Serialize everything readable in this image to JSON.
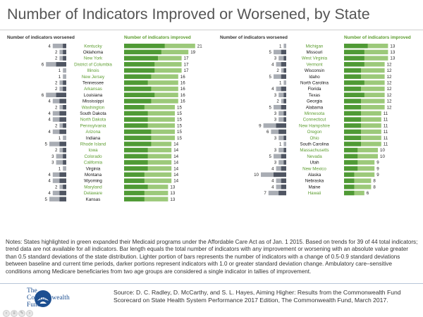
{
  "title": "Number of Indicators Improved or Worsened, by State",
  "notes": "Notes: States highlighted in green expanded their Medicaid programs under the Affordable Care Act as of Jan. 1 2015. Based on trends for 39 of 44 total indicators; trend data are not available for all indicators. Bar length equals the total number of indicators with any improvement or worsening with an absolute value greater than 0.5 standard deviations of the state distribution. Lighter portion of bars represents the number of indicators with a change of 0.5-0.9 standard deviations between baseline and current time periods, darker portions represent indicators with 1.0 or greater standard deviation change. Ambulatory care–sensitive conditions among Medicare beneficiaries from two age groups are considered a single indicator in tallies of improvement.",
  "source": "Source: D. C. Radley, D. McCarthy, and S. L. Hayes, Aiming Higher: Results from the Commonwealth Fund Scorecard on State Health System Performance 2017 Edition, The Commonwealth Fund, March 2017.",
  "logo": {
    "line1": "The",
    "line2": "Commonwealth",
    "line3": "Fund"
  },
  "colors": {
    "improved_light": "#9cc97a",
    "improved_dark": "#4f9a35",
    "worsened_light": "#a9adb4",
    "worsened_dark": "#4f5562",
    "expansion_label": "#5b9c2e",
    "nonexpansion_label": "#111111",
    "worsened_header": "#333333",
    "improved_header": "#5b9c2e"
  },
  "chart_data": {
    "type": "bar",
    "worsened_header": "Number of indicators worsened",
    "improved_header": "Number of indicators improved",
    "panels": [
      {
        "states": [
          {
            "name": "Kentucky",
            "expanded": true,
            "improved": 21,
            "improved_dark": 12,
            "worsened": 4,
            "worsened_dark": 1
          },
          {
            "name": "Oklahoma",
            "expanded": false,
            "improved": 19,
            "improved_dark": 11,
            "worsened": 2,
            "worsened_dark": 1
          },
          {
            "name": "New York",
            "expanded": true,
            "improved": 17,
            "improved_dark": 10,
            "worsened": 2,
            "worsened_dark": 1
          },
          {
            "name": "District of Columbia",
            "expanded": true,
            "improved": 17,
            "improved_dark": 9,
            "worsened": 6,
            "worsened_dark": 3
          },
          {
            "name": "Illinois",
            "expanded": true,
            "improved": 17,
            "improved_dark": 9,
            "worsened": 1,
            "worsened_dark": 0
          },
          {
            "name": "New Jersey",
            "expanded": true,
            "improved": 16,
            "improved_dark": 8,
            "worsened": 1,
            "worsened_dark": 0
          },
          {
            "name": "Tennessee",
            "expanded": false,
            "improved": 16,
            "improved_dark": 7,
            "worsened": 2,
            "worsened_dark": 1
          },
          {
            "name": "Arkansas",
            "expanded": true,
            "improved": 16,
            "improved_dark": 8,
            "worsened": 2,
            "worsened_dark": 1
          },
          {
            "name": "Louisiana",
            "expanded": false,
            "improved": 16,
            "improved_dark": 9,
            "worsened": 6,
            "worsened_dark": 3
          },
          {
            "name": "Mississippi",
            "expanded": false,
            "improved": 16,
            "improved_dark": 8,
            "worsened": 4,
            "worsened_dark": 2
          },
          {
            "name": "Washington",
            "expanded": true,
            "improved": 15,
            "improved_dark": 6,
            "worsened": 2,
            "worsened_dark": 1
          },
          {
            "name": "South Dakota",
            "expanded": false,
            "improved": 15,
            "improved_dark": 7,
            "worsened": 4,
            "worsened_dark": 2
          },
          {
            "name": "North Dakota",
            "expanded": true,
            "improved": 15,
            "improved_dark": 7,
            "worsened": 4,
            "worsened_dark": 2
          },
          {
            "name": "Pennsylvania",
            "expanded": true,
            "improved": 15,
            "improved_dark": 7,
            "worsened": 2,
            "worsened_dark": 1
          },
          {
            "name": "Arizona",
            "expanded": true,
            "improved": 15,
            "improved_dark": 8,
            "worsened": 4,
            "worsened_dark": 2
          },
          {
            "name": "Indiana",
            "expanded": false,
            "improved": 15,
            "improved_dark": 8,
            "worsened": 1,
            "worsened_dark": 0
          },
          {
            "name": "Rhode Island",
            "expanded": true,
            "improved": 14,
            "improved_dark": 8,
            "worsened": 5,
            "worsened_dark": 2
          },
          {
            "name": "Iowa",
            "expanded": true,
            "improved": 14,
            "improved_dark": 7,
            "worsened": 2,
            "worsened_dark": 1
          },
          {
            "name": "Colorado",
            "expanded": true,
            "improved": 14,
            "improved_dark": 7,
            "worsened": 3,
            "worsened_dark": 1
          },
          {
            "name": "California",
            "expanded": true,
            "improved": 14,
            "improved_dark": 7,
            "worsened": 3,
            "worsened_dark": 1
          },
          {
            "name": "Virginia",
            "expanded": false,
            "improved": 14,
            "improved_dark": 7,
            "worsened": 1,
            "worsened_dark": 0
          },
          {
            "name": "Montana",
            "expanded": false,
            "improved": 14,
            "improved_dark": 6,
            "worsened": 4,
            "worsened_dark": 2
          },
          {
            "name": "Wyoming",
            "expanded": false,
            "improved": 14,
            "improved_dark": 6,
            "worsened": 4,
            "worsened_dark": 2
          },
          {
            "name": "Maryland",
            "expanded": true,
            "improved": 13,
            "improved_dark": 7,
            "worsened": 2,
            "worsened_dark": 1
          },
          {
            "name": "Delaware",
            "expanded": true,
            "improved": 13,
            "improved_dark": 6,
            "worsened": 4,
            "worsened_dark": 2
          },
          {
            "name": "Kansas",
            "expanded": false,
            "improved": 13,
            "improved_dark": 6,
            "worsened": 5,
            "worsened_dark": 2
          }
        ]
      },
      {
        "states": [
          {
            "name": "Michigan",
            "expanded": true,
            "improved": 13,
            "improved_dark": 7,
            "worsened": 1,
            "worsened_dark": 0
          },
          {
            "name": "Missouri",
            "expanded": false,
            "improved": 13,
            "improved_dark": 6,
            "worsened": 5,
            "worsened_dark": 2
          },
          {
            "name": "West Virginia",
            "expanded": true,
            "improved": 13,
            "improved_dark": 6,
            "worsened": 3,
            "worsened_dark": 1
          },
          {
            "name": "Vermont",
            "expanded": true,
            "improved": 12,
            "improved_dark": 6,
            "worsened": 4,
            "worsened_dark": 2
          },
          {
            "name": "Wisconsin",
            "expanded": false,
            "improved": 12,
            "improved_dark": 5,
            "worsened": 2,
            "worsened_dark": 1
          },
          {
            "name": "Idaho",
            "expanded": false,
            "improved": 12,
            "improved_dark": 5,
            "worsened": 5,
            "worsened_dark": 2
          },
          {
            "name": "North Carolina",
            "expanded": false,
            "improved": 12,
            "improved_dark": 6,
            "worsened": 1,
            "worsened_dark": 0
          },
          {
            "name": "Florida",
            "expanded": false,
            "improved": 12,
            "improved_dark": 5,
            "worsened": 4,
            "worsened_dark": 2
          },
          {
            "name": "Texas",
            "expanded": false,
            "improved": 12,
            "improved_dark": 6,
            "worsened": 3,
            "worsened_dark": 1
          },
          {
            "name": "Georgia",
            "expanded": false,
            "improved": 12,
            "improved_dark": 5,
            "worsened": 2,
            "worsened_dark": 1
          },
          {
            "name": "Alabama",
            "expanded": false,
            "improved": 12,
            "improved_dark": 5,
            "worsened": 5,
            "worsened_dark": 2
          },
          {
            "name": "Minnesota",
            "expanded": true,
            "improved": 11,
            "improved_dark": 5,
            "worsened": 3,
            "worsened_dark": 1
          },
          {
            "name": "Connecticut",
            "expanded": true,
            "improved": 11,
            "improved_dark": 5,
            "worsened": 3,
            "worsened_dark": 1
          },
          {
            "name": "New Hampshire",
            "expanded": true,
            "improved": 11,
            "improved_dark": 5,
            "worsened": 9,
            "worsened_dark": 4
          },
          {
            "name": "Oregon",
            "expanded": true,
            "improved": 11,
            "improved_dark": 5,
            "worsened": 6,
            "worsened_dark": 3
          },
          {
            "name": "Ohio",
            "expanded": true,
            "improved": 11,
            "improved_dark": 5,
            "worsened": 3,
            "worsened_dark": 1
          },
          {
            "name": "South Carolina",
            "expanded": false,
            "improved": 11,
            "improved_dark": 5,
            "worsened": 1,
            "worsened_dark": 0
          },
          {
            "name": "Massachusetts",
            "expanded": true,
            "improved": 10,
            "improved_dark": 4,
            "worsened": 3,
            "worsened_dark": 1
          },
          {
            "name": "Nevada",
            "expanded": true,
            "improved": 10,
            "improved_dark": 4,
            "worsened": 5,
            "worsened_dark": 2
          },
          {
            "name": "Utah",
            "expanded": false,
            "improved": 9,
            "improved_dark": 4,
            "worsened": 3,
            "worsened_dark": 1
          },
          {
            "name": "New Mexico",
            "expanded": true,
            "improved": 9,
            "improved_dark": 4,
            "worsened": 4,
            "worsened_dark": 2
          },
          {
            "name": "Alaska",
            "expanded": false,
            "improved": 9,
            "improved_dark": 3,
            "worsened": 10,
            "worsened_dark": 5
          },
          {
            "name": "Nebraska",
            "expanded": false,
            "improved": 8,
            "improved_dark": 3,
            "worsened": 4,
            "worsened_dark": 2
          },
          {
            "name": "Maine",
            "expanded": false,
            "improved": 8,
            "improved_dark": 3,
            "worsened": 4,
            "worsened_dark": 2
          },
          {
            "name": "Hawaii",
            "expanded": true,
            "improved": 6,
            "improved_dark": 3,
            "worsened": 7,
            "worsened_dark": 3
          }
        ]
      }
    ]
  }
}
